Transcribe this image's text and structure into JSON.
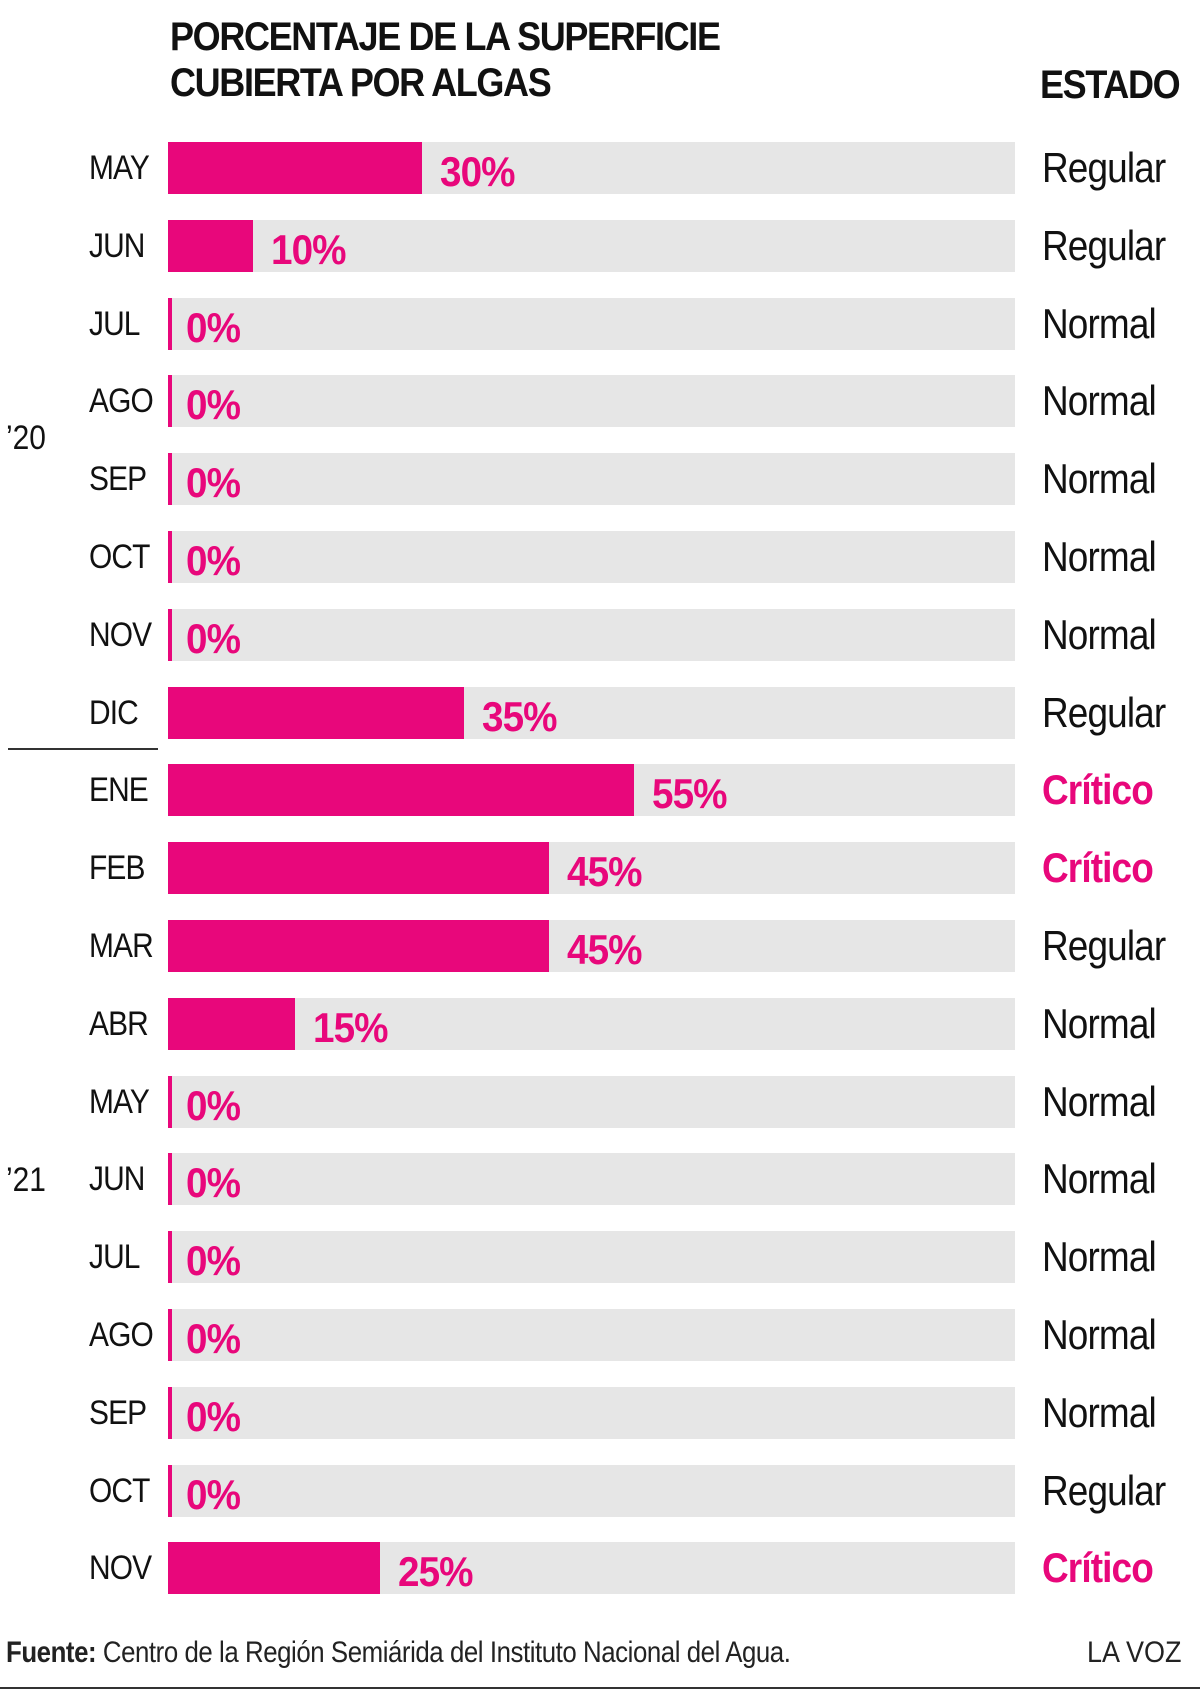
{
  "header": {
    "title_line1": "PORCENTAJE DE LA SUPERFICIE",
    "title_line2": "CUBIERTA POR ALGAS",
    "status_header": "ESTADO"
  },
  "years": [
    "’20",
    "’21"
  ],
  "colors": {
    "accent": "#e8077b",
    "track": "#e6e6e6",
    "text": "#111111"
  },
  "chart_data": {
    "type": "bar",
    "orientation": "horizontal",
    "title": "PORCENTAJE DE LA SUPERFICIE CUBIERTA POR ALGAS",
    "xlim": [
      0,
      100
    ],
    "rows": [
      {
        "month": "MAY",
        "value": 30,
        "label": "30%",
        "status": "Regular",
        "critical": false
      },
      {
        "month": "JUN",
        "value": 10,
        "label": "10%",
        "status": "Regular",
        "critical": false
      },
      {
        "month": "JUL",
        "value": 0,
        "label": "0%",
        "status": "Normal",
        "critical": false
      },
      {
        "month": "AGO",
        "value": 0,
        "label": "0%",
        "status": "Normal",
        "critical": false
      },
      {
        "month": "SEP",
        "value": 0,
        "label": "0%",
        "status": "Normal",
        "critical": false
      },
      {
        "month": "OCT",
        "value": 0,
        "label": "0%",
        "status": "Normal",
        "critical": false
      },
      {
        "month": "NOV",
        "value": 0,
        "label": "0%",
        "status": "Normal",
        "critical": false
      },
      {
        "month": "DIC",
        "value": 35,
        "label": "35%",
        "status": "Regular",
        "critical": false
      },
      {
        "month": "ENE",
        "value": 55,
        "label": "55%",
        "status": "Crítico",
        "critical": true
      },
      {
        "month": "FEB",
        "value": 45,
        "label": "45%",
        "status": "Crítico",
        "critical": true
      },
      {
        "month": "MAR",
        "value": 45,
        "label": "45%",
        "status": "Regular",
        "critical": false
      },
      {
        "month": "ABR",
        "value": 15,
        "label": "15%",
        "status": "Normal",
        "critical": false
      },
      {
        "month": "MAY",
        "value": 0,
        "label": "0%",
        "status": "Normal",
        "critical": false
      },
      {
        "month": "JUN",
        "value": 0,
        "label": "0%",
        "status": "Normal",
        "critical": false
      },
      {
        "month": "JUL",
        "value": 0,
        "label": "0%",
        "status": "Normal",
        "critical": false
      },
      {
        "month": "AGO",
        "value": 0,
        "label": "0%",
        "status": "Normal",
        "critical": false
      },
      {
        "month": "SEP",
        "value": 0,
        "label": "0%",
        "status": "Normal",
        "critical": false
      },
      {
        "month": "OCT",
        "value": 0,
        "label": "0%",
        "status": "Regular",
        "critical": false
      },
      {
        "month": "NOV",
        "value": 25,
        "label": "25%",
        "status": "Crítico",
        "critical": true
      }
    ]
  },
  "footer": {
    "source_label": "Fuente:",
    "source_text": " Centro de la Región Semiárida del Instituto Nacional del Agua.",
    "brand": "LA VOZ"
  }
}
